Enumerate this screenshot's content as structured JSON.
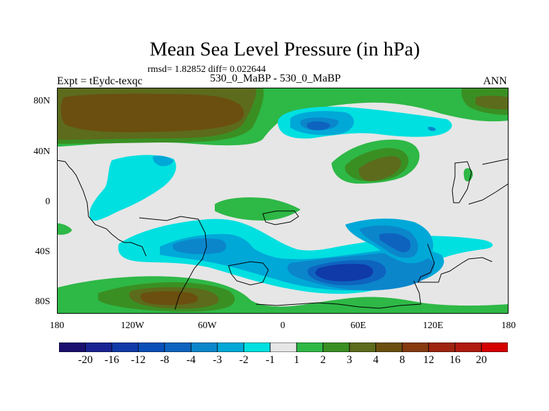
{
  "title": "Mean Sea Level Pressure (in hPa)",
  "rmsd_text": "rmsd= 1.82852 diff= 0.022644",
  "expt_text": "Expt = tEydc-texqc",
  "case_text": "530_0_MaBP - 530_0_MaBP",
  "season": "ANN",
  "lat_labels": [
    "80N",
    "40N",
    "0",
    "40S",
    "80S"
  ],
  "lon_labels": [
    "180",
    "120W",
    "60W",
    "0",
    "60E",
    "120E",
    "180"
  ],
  "colorbar": {
    "levels": [
      "-20",
      "-16",
      "-12",
      "-8",
      "-4",
      "-3",
      "-2",
      "-1",
      "1",
      "2",
      "3",
      "4",
      "8",
      "12",
      "16",
      "20"
    ],
    "colors": [
      "#1a0f6e",
      "#1a2393",
      "#0f3aa8",
      "#0a4fb8",
      "#0e63bf",
      "#0b86cb",
      "#00a8d8",
      "#00e0e0",
      "#e6e6e6",
      "#2eb846",
      "#3a8f23",
      "#5c6b1c",
      "#6b4f10",
      "#853a10",
      "#9e2410",
      "#b01a10",
      "#d40000"
    ]
  }
}
